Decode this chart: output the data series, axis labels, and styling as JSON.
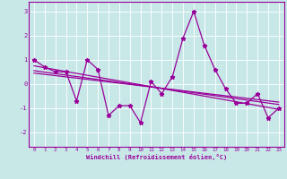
{
  "x": [
    0,
    1,
    2,
    3,
    4,
    5,
    6,
    7,
    8,
    9,
    10,
    11,
    12,
    13,
    14,
    15,
    16,
    17,
    18,
    19,
    20,
    21,
    22,
    23
  ],
  "y_main": [
    1.0,
    0.7,
    0.5,
    0.5,
    -0.7,
    1.0,
    0.6,
    -1.3,
    -0.9,
    -0.9,
    -1.6,
    0.1,
    -0.4,
    0.3,
    1.9,
    3.0,
    1.6,
    0.6,
    -0.2,
    -0.8,
    -0.8,
    -0.4,
    -1.4,
    -1.0
  ],
  "line1_x": [
    0,
    23
  ],
  "line1_y": [
    0.75,
    -1.05
  ],
  "line2_x": [
    0,
    23
  ],
  "line2_y": [
    0.55,
    -0.85
  ],
  "line3_x": [
    0,
    23
  ],
  "line3_y": [
    0.45,
    -0.75
  ],
  "color": "#990099",
  "bg_color": "#c8e8e8",
  "xlabel": "Windchill (Refroidissement éolien,°C)",
  "ylim": [
    -2.6,
    3.4
  ],
  "xlim": [
    -0.5,
    23.5
  ],
  "yticks": [
    -2,
    -1,
    0,
    1,
    2,
    3
  ],
  "xticks": [
    0,
    1,
    2,
    3,
    4,
    5,
    6,
    7,
    8,
    9,
    10,
    11,
    12,
    13,
    14,
    15,
    16,
    17,
    18,
    19,
    20,
    21,
    22,
    23
  ]
}
